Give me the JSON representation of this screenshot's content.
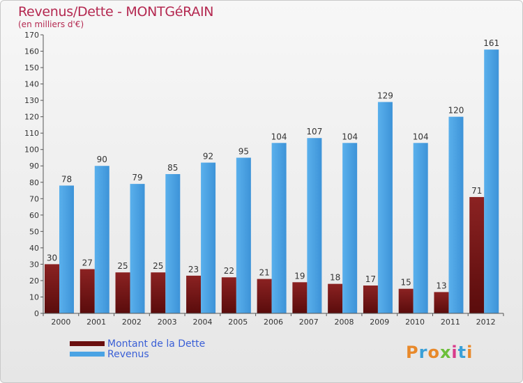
{
  "chart_data": {
    "type": "bar",
    "title": "Revenus/Dette - MONTGéRAIN",
    "subtitle": "(en milliers d'€)",
    "categories": [
      "2000",
      "2001",
      "2002",
      "2003",
      "2004",
      "2005",
      "2006",
      "2007",
      "2008",
      "2009",
      "2010",
      "2011",
      "2012"
    ],
    "series": [
      {
        "name": "Montant de la Dette",
        "color": "#7a1616",
        "values": [
          30,
          27,
          25,
          25,
          23,
          22,
          21,
          19,
          18,
          17,
          15,
          13,
          71
        ]
      },
      {
        "name": "Revenus",
        "color": "#4aa3e4",
        "values": [
          78,
          90,
          79,
          85,
          92,
          95,
          104,
          107,
          104,
          129,
          104,
          120,
          161
        ]
      }
    ],
    "ylim": [
      0,
      170
    ],
    "yticks": [
      0,
      10,
      20,
      30,
      40,
      50,
      60,
      70,
      80,
      90,
      100,
      110,
      120,
      130,
      140,
      150,
      160,
      170
    ],
    "grid": false,
    "legend_position": "bottom-left"
  },
  "brand": {
    "text": "Proxiti"
  }
}
